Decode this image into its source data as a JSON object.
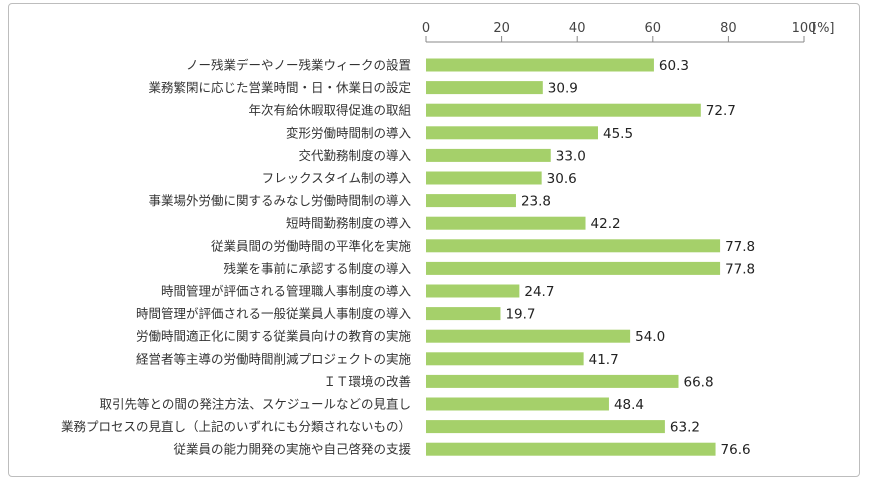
{
  "chart_data": {
    "type": "bar",
    "orientation": "horizontal",
    "unit": "[%]",
    "xlim": [
      0,
      100
    ],
    "xticks": [
      0,
      20,
      40,
      60,
      80,
      100
    ],
    "grid": false,
    "bar_color": "#a5d06a",
    "categories": [
      "ノー残業デーやノー残業ウィークの設置",
      "業務繁閑に応じた営業時間・日・休業日の設定",
      "年次有給休暇取得促進の取組",
      "変形労働時間制の導入",
      "交代勤務制度の導入",
      "フレックスタイム制の導入",
      "事業場外労働に関するみなし労働時間制の導入",
      "短時間勤務制度の導入",
      "従業員間の労働時間の平準化を実施",
      "残業を事前に承認する制度の導入",
      "時間管理が評価される管理職人事制度の導入",
      "時間管理が評価される一般従業員人事制度の導入",
      "労働時間適正化に関する従業員向けの教育の実施",
      "経営者等主導の労働時間削減プロジェクトの実施",
      "ＩＴ環境の改善",
      "取引先等との間の発注方法、スケジュールなどの見直し",
      "業務プロセスの見直し（上記のいずれにも分類されないもの）",
      "従業員の能力開発の実施や自己啓発の支援"
    ],
    "values": [
      60.3,
      30.9,
      72.7,
      45.5,
      33.0,
      30.6,
      23.8,
      42.2,
      77.8,
      77.8,
      24.7,
      19.7,
      54.0,
      41.7,
      66.8,
      48.4,
      63.2,
      76.6
    ]
  }
}
